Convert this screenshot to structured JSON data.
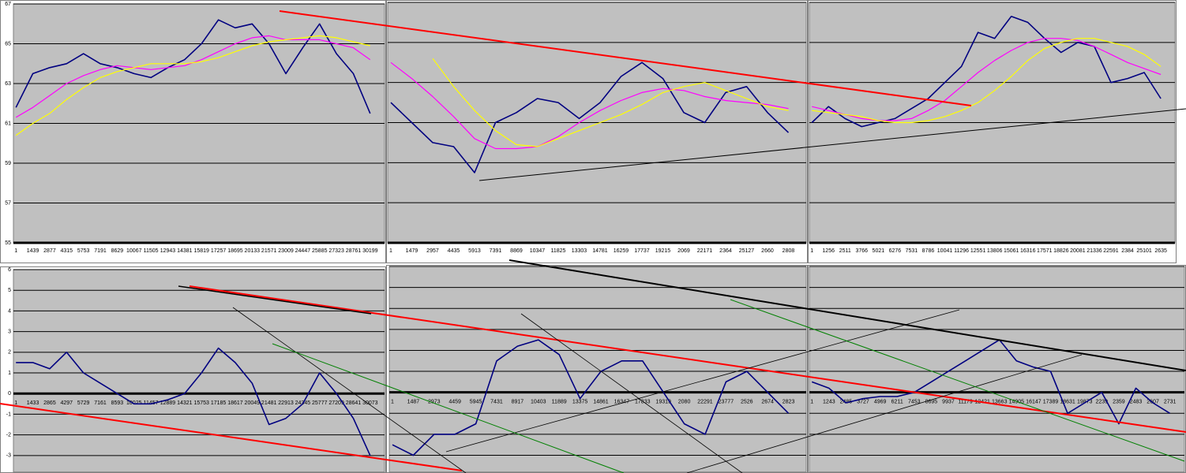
{
  "chart_data": [
    {
      "type": "line",
      "categories": [
        "1",
        "1439",
        "2877",
        "4315",
        "5753",
        "7191",
        "8629",
        "10067",
        "11505",
        "12943",
        "14381",
        "15819",
        "17257",
        "18695",
        "20133",
        "21571",
        "23009",
        "24447",
        "25885",
        "27323",
        "28761",
        "30199"
      ],
      "series": [
        {
          "color": "#000080",
          "values": [
            61.8,
            63.5,
            63.8,
            64.0,
            64.5,
            64.0,
            63.8,
            63.5,
            63.3,
            63.8,
            64.2,
            65.0,
            66.2,
            65.8,
            66.0,
            65.0,
            63.5,
            64.8,
            66.0,
            64.5,
            63.5,
            61.5
          ]
        },
        {
          "color": "#ff00ff",
          "values": [
            61.3,
            61.8,
            62.4,
            63.0,
            63.4,
            63.7,
            63.9,
            63.8,
            63.7,
            63.8,
            63.9,
            64.2,
            64.6,
            65.0,
            65.3,
            65.4,
            65.2,
            65.2,
            65.2,
            65.0,
            64.8,
            64.2
          ]
        },
        {
          "color": "#ffff00",
          "values": [
            60.4,
            61.0,
            61.5,
            62.2,
            62.8,
            63.3,
            63.6,
            63.8,
            64.0,
            64.0,
            64.0,
            64.1,
            64.3,
            64.6,
            64.9,
            65.1,
            65.2,
            65.3,
            65.4,
            65.3,
            65.1,
            64.9
          ]
        }
      ],
      "ylim": [
        55,
        67
      ],
      "yticks": [
        55,
        57,
        59,
        61,
        63,
        65,
        67
      ],
      "grid": true
    },
    {
      "type": "line",
      "categories": [
        "1",
        "1479",
        "2957",
        "4435",
        "5913",
        "7391",
        "8869",
        "10347",
        "11825",
        "13303",
        "14781",
        "16259",
        "17737",
        "19215",
        "2069",
        "22171",
        "2364",
        "25127",
        "2660",
        "2808"
      ],
      "series": [
        {
          "color": "#000080",
          "values": [
            62.0,
            61.0,
            60.0,
            59.8,
            58.5,
            61.0,
            61.5,
            62.2,
            62.0,
            61.2,
            62.0,
            63.3,
            64.0,
            63.2,
            61.5,
            61.0,
            62.5,
            62.8,
            61.5,
            60.5
          ]
        },
        {
          "color": "#ff00ff",
          "values": [
            64.0,
            63.2,
            62.3,
            61.3,
            60.2,
            59.7,
            59.7,
            59.8,
            60.3,
            61.0,
            61.6,
            62.1,
            62.5,
            62.7,
            62.6,
            62.3,
            62.1,
            62.0,
            61.9,
            61.7
          ]
        },
        {
          "color": "#ffff00",
          "values": [
            null,
            null,
            64.2,
            62.8,
            61.6,
            60.6,
            59.9,
            59.8,
            60.2,
            60.6,
            61.0,
            61.4,
            61.9,
            62.5,
            62.8,
            63.0,
            62.6,
            62.2,
            61.8,
            61.6
          ]
        }
      ],
      "ylim": [
        55,
        67
      ],
      "yticks": [
        55,
        57,
        59,
        61,
        63,
        65,
        67
      ],
      "grid": true
    },
    {
      "type": "line",
      "categories": [
        "1",
        "1256",
        "2511",
        "3766",
        "5021",
        "6276",
        "7531",
        "8786",
        "10041",
        "11296",
        "12551",
        "13806",
        "15061",
        "16316",
        "17571",
        "18826",
        "20081",
        "21336",
        "22591",
        "2384",
        "25101",
        "2635"
      ],
      "series": [
        {
          "color": "#000080",
          "values": [
            61.0,
            61.8,
            61.2,
            60.8,
            61.0,
            61.2,
            61.7,
            62.2,
            63.0,
            63.8,
            65.5,
            65.2,
            66.3,
            66.0,
            65.2,
            64.5,
            65.0,
            64.8,
            63.0,
            63.2,
            63.5,
            62.2
          ]
        },
        {
          "color": "#ff00ff",
          "values": [
            61.8,
            61.6,
            61.4,
            61.2,
            61.1,
            61.1,
            61.2,
            61.6,
            62.1,
            62.8,
            63.5,
            64.1,
            64.6,
            65.0,
            65.2,
            65.2,
            65.1,
            64.8,
            64.4,
            64.0,
            63.7,
            63.4
          ]
        },
        {
          "color": "#ffff00",
          "values": [
            61.6,
            61.5,
            61.4,
            61.3,
            61.1,
            61.0,
            61.0,
            61.1,
            61.3,
            61.6,
            62.0,
            62.6,
            63.3,
            64.1,
            64.7,
            65.0,
            65.2,
            65.2,
            65.0,
            64.8,
            64.4,
            63.8
          ]
        }
      ],
      "ylim": [
        55,
        67
      ],
      "yticks": [
        55,
        57,
        59,
        61,
        63,
        65,
        67
      ],
      "grid": true
    },
    {
      "type": "line",
      "categories": [
        "1",
        "1433",
        "2865",
        "4297",
        "5729",
        "7161",
        "8593",
        "10025",
        "11457",
        "12889",
        "14321",
        "15753",
        "17185",
        "18617",
        "20049",
        "21481",
        "22913",
        "24345",
        "25777",
        "27209",
        "28641",
        "30073"
      ],
      "series": [
        {
          "color": "#000080",
          "values": [
            1.5,
            1.5,
            1.2,
            2.0,
            1.0,
            0.5,
            0.0,
            -0.5,
            -0.5,
            -0.3,
            0.0,
            1.0,
            2.2,
            1.5,
            0.5,
            -1.5,
            -1.2,
            -0.5,
            1.0,
            0.0,
            -1.2,
            -3.0
          ]
        }
      ],
      "ylim": [
        -3.8,
        6
      ],
      "yticks": [
        -3,
        -2,
        -1,
        0,
        1,
        2,
        3,
        4,
        5,
        6
      ],
      "grid": true
    },
    {
      "type": "line",
      "categories": [
        "1",
        "1487",
        "2973",
        "4459",
        "5945",
        "7431",
        "8917",
        "10403",
        "11889",
        "13375",
        "14861",
        "16347",
        "17833",
        "19319",
        "2080",
        "22291",
        "23777",
        "2526",
        "2674",
        "2823"
      ],
      "series": [
        {
          "color": "#000080",
          "values": [
            -2.5,
            -3.0,
            -2.0,
            -2.0,
            -1.5,
            1.5,
            2.2,
            2.5,
            1.8,
            -0.3,
            1.0,
            1.5,
            1.5,
            0.0,
            -1.5,
            -2.0,
            0.5,
            1.0,
            0.0,
            -1.0
          ]
        }
      ],
      "ylim": [
        -3.8,
        6
      ],
      "yticks": [
        -3,
        -2,
        -1,
        0,
        1,
        2,
        3,
        4,
        5,
        6
      ],
      "grid": true
    },
    {
      "type": "line",
      "categories": [
        "1",
        "1243",
        "2485",
        "3727",
        "4969",
        "6211",
        "7453",
        "8695",
        "9937",
        "11179",
        "12421",
        "13663",
        "14905",
        "16147",
        "17389",
        "18631",
        "19873",
        "2239",
        "2359",
        "2483",
        "2607",
        "2731"
      ],
      "series": [
        {
          "color": "#000080",
          "values": [
            0.5,
            0.2,
            -0.5,
            -0.3,
            -0.2,
            -0.2,
            0.0,
            0.5,
            1.0,
            1.5,
            2.0,
            2.5,
            1.5,
            1.2,
            1.0,
            -1.0,
            -0.5,
            0.0,
            -1.5,
            0.2,
            -0.5,
            -1.0
          ]
        }
      ],
      "ylim": [
        -3.8,
        6
      ],
      "yticks": [
        -3,
        -2,
        -1,
        0,
        1,
        2,
        3,
        4,
        5,
        6
      ],
      "grid": true
    }
  ]
}
